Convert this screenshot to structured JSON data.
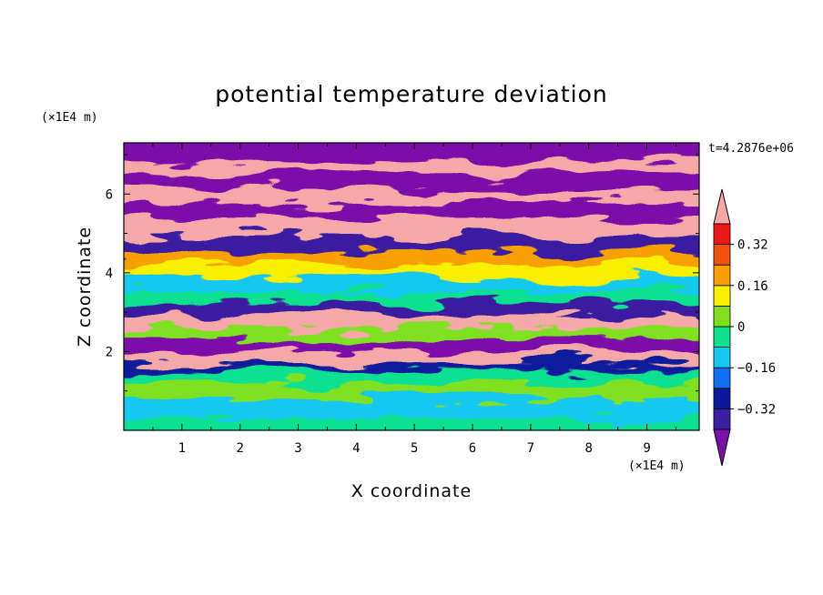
{
  "chart_data": {
    "type": "heatmap",
    "title": "potential temperature deviation",
    "xlabel": "X coordinate",
    "ylabel": "Z coordinate",
    "x_unit": "(×1E4 m)",
    "y_unit": "(×1E4 m)",
    "time_label": "t=4.2876e+06",
    "xlim": [
      0,
      9.9
    ],
    "ylim": [
      0,
      7.3
    ],
    "x_ticks": [
      1,
      2,
      3,
      4,
      5,
      6,
      7,
      8,
      9
    ],
    "y_ticks": [
      2,
      4,
      6
    ],
    "colorbar": {
      "levels": [
        -0.4,
        -0.32,
        -0.24,
        -0.16,
        -0.08,
        0,
        0.08,
        0.16,
        0.24,
        0.32,
        0.4
      ],
      "tick_values": [
        -0.32,
        -0.16,
        0,
        0.16,
        0.32
      ],
      "tick_labels": [
        "−0.32",
        "−0.16",
        "0",
        "0.16",
        "0.32"
      ],
      "colors": [
        "#7b0fa8",
        "#3b1fa0",
        "#0a1a9a",
        "#1470f0",
        "#18c8f0",
        "#10e090",
        "#80e020",
        "#f8f000",
        "#f8a000",
        "#f05010",
        "#e81818",
        "#f4a8a8"
      ],
      "extend": "both"
    },
    "bands": [
      {
        "z": 0.0,
        "level": 5
      },
      {
        "z": 0.4,
        "level": 4
      },
      {
        "z": 0.9,
        "level": 6
      },
      {
        "z": 1.3,
        "level": 5
      },
      {
        "z": 1.6,
        "level": 2
      },
      {
        "z": 1.8,
        "level": 11
      },
      {
        "z": 2.1,
        "level": 0
      },
      {
        "z": 2.4,
        "level": 6
      },
      {
        "z": 2.7,
        "level": 11
      },
      {
        "z": 3.0,
        "level": 1
      },
      {
        "z": 3.3,
        "level": 5
      },
      {
        "z": 3.6,
        "level": 4
      },
      {
        "z": 4.0,
        "level": 7
      },
      {
        "z": 4.3,
        "level": 8
      },
      {
        "z": 4.6,
        "level": 1
      },
      {
        "z": 5.0,
        "level": 11
      },
      {
        "z": 5.5,
        "level": 0
      },
      {
        "z": 5.9,
        "level": 11
      },
      {
        "z": 6.2,
        "level": 0
      },
      {
        "z": 6.6,
        "level": 11
      },
      {
        "z": 6.9,
        "level": 0
      }
    ]
  }
}
